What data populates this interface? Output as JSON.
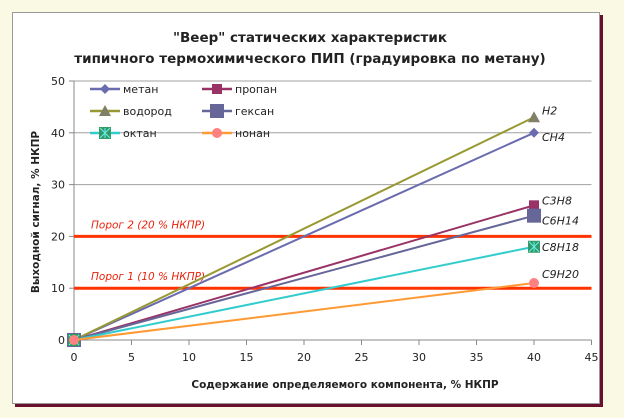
{
  "chart_data": {
    "type": "line",
    "title": [
      "\"Веер\" статических характеристик",
      "типичного термохимического ПИП (градуировка по метану)"
    ],
    "xlabel": "Содержание определяемого компонента, % НКПР",
    "ylabel": "Выходной сигнал, % НКПР",
    "xlim": [
      0,
      45
    ],
    "ylim": [
      0,
      50
    ],
    "xticks": [
      0,
      5,
      10,
      15,
      20,
      25,
      30,
      35,
      40,
      45
    ],
    "yticks": [
      0,
      10,
      20,
      30,
      40,
      50
    ],
    "grid": "horizontal",
    "legend": "top-left",
    "series": [
      {
        "name": "метан",
        "formula": "CH4",
        "x": [
          0,
          40
        ],
        "y": [
          0,
          40
        ],
        "color": "#6b6bb0",
        "marker": "diamond",
        "marker_color": "#6b6bb0"
      },
      {
        "name": "пропан",
        "formula": "C3H8",
        "x": [
          0,
          40
        ],
        "y": [
          0,
          26
        ],
        "color": "#993366",
        "marker": "square",
        "marker_color": "#993366"
      },
      {
        "name": "водород",
        "formula": "H2",
        "x": [
          0,
          40
        ],
        "y": [
          0,
          43
        ],
        "color": "#999933",
        "marker": "triangle",
        "marker_color": "#808066"
      },
      {
        "name": "гексан",
        "formula": "C6H14",
        "x": [
          0,
          40
        ],
        "y": [
          0,
          24
        ],
        "color": "#666699",
        "marker": "bigsquare",
        "marker_color": "#666699"
      },
      {
        "name": "октан",
        "formula": "C8H18",
        "x": [
          0,
          40
        ],
        "y": [
          0,
          18
        ],
        "color": "#33cccc",
        "marker": "xsquare",
        "marker_color": "#339966"
      },
      {
        "name": "нонан",
        "formula": "C9H20",
        "x": [
          0,
          40
        ],
        "y": [
          0,
          11
        ],
        "color": "#ff9933",
        "marker": "circle",
        "marker_color": "#ff8080"
      }
    ],
    "thresholds": [
      {
        "label": "Порог 2 (20 % НКПР)",
        "y": 20,
        "color": "#ff3300"
      },
      {
        "label": "Порог 1 (10 % НКПР)",
        "y": 10,
        "color": "#ff3300"
      }
    ]
  }
}
